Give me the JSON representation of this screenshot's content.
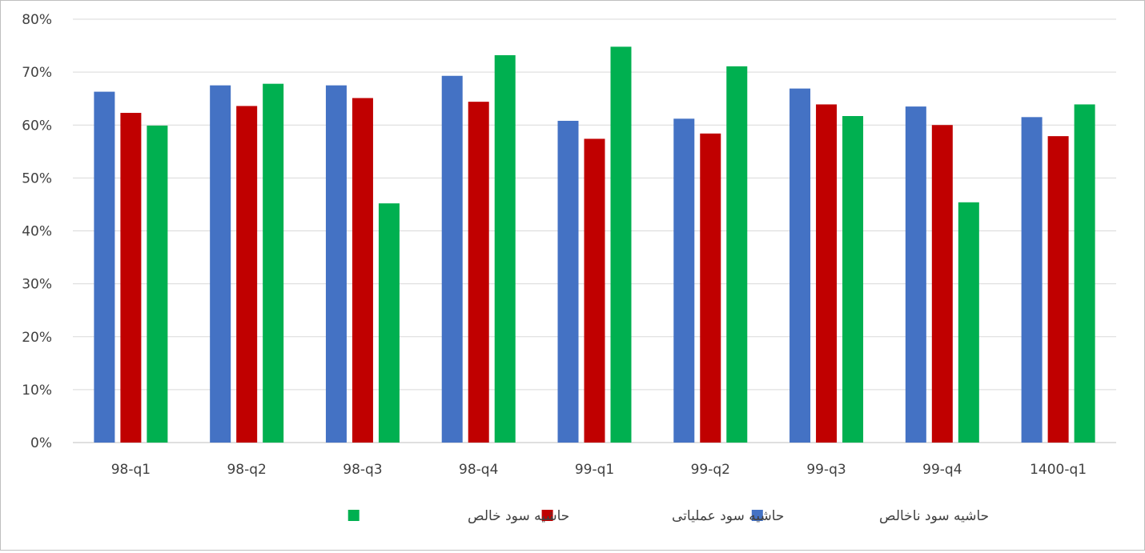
{
  "chart_data": {
    "type": "bar",
    "categories": [
      "98-q1",
      "98-q2",
      "98-q3",
      "98-q4",
      "99-q1",
      "99-q2",
      "99-q3",
      "99-q4",
      "1400-q1"
    ],
    "series": [
      {
        "name": "حاشیه سود ناخالص",
        "color": "#4472C4",
        "values": [
          66.3,
          67.5,
          67.5,
          69.3,
          60.8,
          61.2,
          66.9,
          63.5,
          61.5
        ]
      },
      {
        "name": "حاشیه سود عملیاتی",
        "color": "#C00000",
        "values": [
          62.3,
          63.6,
          65.1,
          64.4,
          57.4,
          58.4,
          63.9,
          60.0,
          57.9
        ]
      },
      {
        "name": "حاشیه سود خالص",
        "color": "#00B050",
        "values": [
          59.9,
          67.8,
          45.2,
          73.2,
          74.8,
          71.1,
          61.7,
          45.4,
          63.9
        ]
      }
    ],
    "ylim": [
      0,
      80
    ],
    "yticks": [
      "0%",
      "10%",
      "20%",
      "30%",
      "40%",
      "50%",
      "60%",
      "70%",
      "80%"
    ],
    "title": "",
    "xlabel": "",
    "ylabel": "",
    "grid": true,
    "legend_position": "bottom"
  }
}
